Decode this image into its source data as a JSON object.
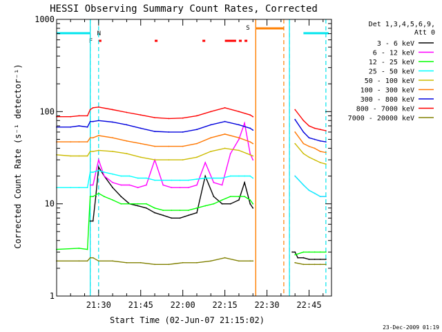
{
  "chart_data": {
    "type": "line",
    "title": "HESSI Observing Summary Count Rates, Corrected",
    "xlabel": "Start Time (02-Jun-07 21:15:02)",
    "ylabel": "Corrected Count Rate (s⁻¹ detector⁻¹)",
    "yscale": "log",
    "ylim": [
      1,
      1000
    ],
    "xlim": [
      "21:15:02",
      "22:53:00"
    ],
    "x_ticks": [
      "21:30",
      "21:45",
      "22:00",
      "22:15",
      "22:30",
      "22:45"
    ],
    "y_ticks": [
      "1",
      "10",
      "100",
      "1000"
    ],
    "grid": false,
    "legend_position": "right",
    "legend_header": [
      "Det 1,3,4,5,6,9,",
      "Att 0"
    ],
    "footer_date": "23-Dec-2009 01:19",
    "flag_labels": {
      "night": "N",
      "flare": "F",
      "saa": "S"
    },
    "colors": {
      "night_line": "#00e5ee",
      "flare_bar": "#ff0000",
      "saa_bar": "#ff7f00"
    },
    "night_flags": [
      {
        "start": "21:15",
        "end": "21:27"
      },
      {
        "start": "22:43",
        "end": "22:52"
      }
    ],
    "night_markers": [
      "21:27",
      "21:30",
      "22:38",
      "22:51"
    ],
    "flare_bars": [
      {
        "start": "21:30",
        "end": "21:31"
      },
      {
        "start": "21:50",
        "end": "21:51"
      },
      {
        "start": "22:07",
        "end": "22:08"
      },
      {
        "start": "22:15",
        "end": "22:19"
      },
      {
        "start": "22:20",
        "end": "22:21"
      },
      {
        "start": "22:22",
        "end": "22:23"
      }
    ],
    "saa_flag": {
      "start": "22:26",
      "end": "22:36"
    },
    "saa_markers": [
      "22:26",
      "22:36"
    ],
    "data_gap": {
      "start": "22:26",
      "end": "22:38"
    },
    "series": [
      {
        "name": "3 - 6 keV",
        "color": "#000000",
        "x": [
          "21:15",
          "21:23",
          "21:24",
          "21:26",
          "21:27",
          "21:28",
          "21:29",
          "21:30",
          "21:32",
          "21:35",
          "21:38",
          "21:41",
          "21:44",
          "21:47",
          "21:50",
          "21:53",
          "21:56",
          "21:59",
          "22:02",
          "22:05",
          "22:08",
          "22:11",
          "22:14",
          "22:17",
          "22:20",
          "22:22",
          "22:24",
          "22:25",
          "22:38",
          "22:39",
          "22:40",
          "22:41",
          "22:43",
          "22:45",
          "22:47",
          "22:49",
          "22:51"
        ],
        "values": [
          null,
          null,
          null,
          null,
          6.5,
          6.5,
          12,
          25,
          20,
          15,
          12,
          10,
          9.5,
          9,
          8,
          7.5,
          7,
          7,
          7.5,
          8,
          20,
          12,
          10,
          10,
          11,
          17,
          10,
          9,
          null,
          3,
          3,
          2.6,
          2.6,
          2.5,
          2.5,
          2.5,
          2.5
        ]
      },
      {
        "name": "6 - 12 keV",
        "color": "#ff00ff",
        "x": [
          "21:15",
          "21:23",
          "21:26",
          "21:27",
          "21:28",
          "21:30",
          "21:32",
          "21:35",
          "21:38",
          "21:41",
          "21:44",
          "21:47",
          "21:50",
          "21:53",
          "21:56",
          "21:59",
          "22:02",
          "22:05",
          "22:08",
          "22:11",
          "22:14",
          "22:17",
          "22:20",
          "22:22",
          "22:24",
          "22:25",
          "22:38",
          "22:40",
          "22:43",
          "22:45",
          "22:47",
          "22:49",
          "22:51"
        ],
        "values": [
          null,
          null,
          null,
          16,
          16,
          30,
          20,
          17,
          16,
          16,
          15,
          16,
          30,
          16,
          15,
          15,
          15,
          16,
          28,
          17,
          16,
          35,
          50,
          75,
          35,
          30,
          null,
          20,
          16,
          14,
          13,
          12,
          12
        ]
      },
      {
        "name": "12 - 25 keV",
        "color": "#00ff00",
        "x": [
          "21:15",
          "21:23",
          "21:26",
          "21:27",
          "21:28",
          "21:30",
          "21:32",
          "21:35",
          "21:38",
          "21:41",
          "21:44",
          "21:47",
          "21:50",
          "21:53",
          "21:56",
          "21:59",
          "22:02",
          "22:05",
          "22:08",
          "22:11",
          "22:14",
          "22:17",
          "22:20",
          "22:22",
          "22:24",
          "22:25",
          "22:38",
          "22:40",
          "22:43",
          "22:45",
          "22:47",
          "22:49",
          "22:51"
        ],
        "values": [
          3.2,
          3.3,
          3.2,
          12,
          12,
          13,
          12,
          11,
          10,
          10,
          10,
          10,
          9,
          8.5,
          8.5,
          8.5,
          8.5,
          9,
          9.5,
          10,
          11,
          12,
          12,
          12,
          11,
          10,
          null,
          2.8,
          3,
          3,
          3,
          3,
          3
        ]
      },
      {
        "name": "25 - 50 keV",
        "color": "#00ffff",
        "x": [
          "21:15",
          "21:20",
          "21:23",
          "21:26",
          "21:27",
          "21:28",
          "21:30",
          "21:32",
          "21:35",
          "21:38",
          "21:41",
          "21:44",
          "21:47",
          "21:50",
          "21:53",
          "21:56",
          "21:59",
          "22:02",
          "22:05",
          "22:08",
          "22:11",
          "22:14",
          "22:17",
          "22:20",
          "22:22",
          "22:24",
          "22:25",
          "22:38",
          "22:40",
          "22:43",
          "22:45",
          "22:47",
          "22:49",
          "22:51"
        ],
        "values": [
          15,
          15,
          15,
          15,
          22,
          22,
          23,
          22,
          21,
          20,
          20,
          19,
          19,
          18,
          18,
          18,
          18,
          18,
          18.5,
          19,
          19,
          19,
          20,
          20,
          20,
          20,
          19,
          null,
          20,
          16,
          14,
          13,
          12,
          12
        ]
      },
      {
        "name": "50 - 100 keV",
        "color": "#ccbb00",
        "x": [
          "21:15",
          "21:20",
          "21:23",
          "21:26",
          "21:27",
          "21:28",
          "21:30",
          "21:35",
          "21:40",
          "21:45",
          "21:50",
          "21:55",
          "22:00",
          "22:05",
          "22:10",
          "22:15",
          "22:20",
          "22:24",
          "22:25",
          "22:38",
          "22:40",
          "22:43",
          "22:45",
          "22:47",
          "22:49",
          "22:51"
        ],
        "values": [
          34,
          33,
          33,
          33,
          37,
          37,
          38,
          37,
          35,
          32,
          30,
          30,
          30,
          32,
          37,
          40,
          38,
          34,
          33,
          null,
          45,
          35,
          32,
          30,
          28,
          27
        ]
      },
      {
        "name": "100 - 300 keV",
        "color": "#ff7700",
        "x": [
          "21:15",
          "21:20",
          "21:23",
          "21:26",
          "21:27",
          "21:28",
          "21:30",
          "21:35",
          "21:40",
          "21:45",
          "21:50",
          "21:55",
          "22:00",
          "22:05",
          "22:10",
          "22:15",
          "22:20",
          "22:24",
          "22:25",
          "22:38",
          "22:40",
          "22:43",
          "22:45",
          "22:47",
          "22:49",
          "22:51"
        ],
        "values": [
          47,
          47,
          47,
          47,
          52,
          52,
          55,
          52,
          48,
          45,
          42,
          42,
          42,
          45,
          52,
          57,
          52,
          47,
          45,
          null,
          60,
          45,
          42,
          40,
          37,
          36
        ]
      },
      {
        "name": "300 - 800 keV",
        "color": "#0000dd",
        "x": [
          "21:15",
          "21:20",
          "21:23",
          "21:26",
          "21:27",
          "21:28",
          "21:30",
          "21:35",
          "21:40",
          "21:45",
          "21:50",
          "21:55",
          "22:00",
          "22:05",
          "22:10",
          "22:15",
          "22:20",
          "22:24",
          "22:25",
          "22:38",
          "22:40",
          "22:43",
          "22:45",
          "22:47",
          "22:49",
          "22:51"
        ],
        "values": [
          68,
          68,
          70,
          68,
          78,
          78,
          80,
          77,
          72,
          66,
          61,
          60,
          60,
          64,
          72,
          78,
          72,
          66,
          63,
          null,
          82,
          60,
          52,
          50,
          48,
          47
        ]
      },
      {
        "name": "800 - 7000 keV",
        "color": "#ff0000",
        "x": [
          "21:15",
          "21:20",
          "21:23",
          "21:26",
          "21:27",
          "21:28",
          "21:30",
          "21:35",
          "21:40",
          "21:45",
          "21:50",
          "21:55",
          "22:00",
          "22:05",
          "22:10",
          "22:15",
          "22:20",
          "22:24",
          "22:25",
          "22:38",
          "22:40",
          "22:43",
          "22:45",
          "22:47",
          "22:49",
          "22:51"
        ],
        "values": [
          88,
          88,
          90,
          90,
          105,
          110,
          112,
          105,
          98,
          92,
          86,
          84,
          85,
          90,
          100,
          110,
          100,
          92,
          88,
          null,
          105,
          80,
          70,
          66,
          64,
          62
        ]
      },
      {
        "name": "7000 - 20000 keV",
        "color": "#808000",
        "x": [
          "21:15",
          "21:23",
          "21:26",
          "21:27",
          "21:28",
          "21:30",
          "21:35",
          "21:40",
          "21:45",
          "21:50",
          "21:55",
          "22:00",
          "22:05",
          "22:10",
          "22:15",
          "22:20",
          "22:24",
          "22:25",
          "22:38",
          "22:40",
          "22:43",
          "22:45",
          "22:47",
          "22:49",
          "22:51"
        ],
        "values": [
          2.4,
          2.4,
          2.4,
          2.6,
          2.6,
          2.4,
          2.4,
          2.3,
          2.3,
          2.2,
          2.2,
          2.3,
          2.3,
          2.4,
          2.6,
          2.4,
          2.4,
          2.4,
          null,
          2.3,
          2.2,
          2.2,
          2.2,
          2.2,
          2.2
        ]
      }
    ]
  }
}
